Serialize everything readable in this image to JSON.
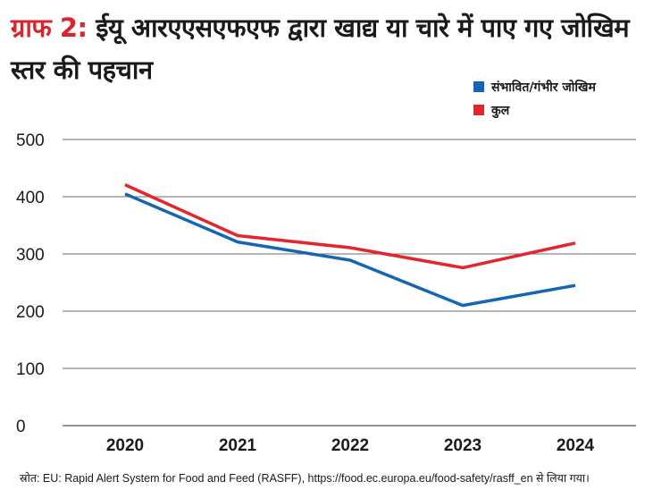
{
  "title": {
    "prefix": "ग्राफ 2:",
    "text": "ईयू आरएएसएफएफ द्वारा खाद्य या चारे में पाए गए जोखिम स्तर की पहचान"
  },
  "source": "स्रोत: EU: Rapid Alert System for Food and Feed (RASFF), https://food.ec.europa.eu/food-safety/rasff_en से लिया गया।",
  "chart_data": {
    "type": "line",
    "title": "ग्राफ 2: ईयू आरएएसएफएफ द्वारा खाद्य या चारे में पाए गए जोखिम स्तर की पहचान",
    "categories": [
      "2020",
      "2021",
      "2022",
      "2023",
      "2024"
    ],
    "series": [
      {
        "name": "संभावित/गंभीर जोखिम",
        "color": "#1565b7",
        "values": [
          405,
          321,
          289,
          210,
          245
        ]
      },
      {
        "name": "कुल",
        "color": "#e3262e",
        "values": [
          421,
          332,
          311,
          276,
          319
        ]
      }
    ],
    "ylim": [
      0,
      500
    ],
    "yticks": [
      0,
      100,
      200,
      300,
      400,
      500
    ],
    "grid": true,
    "legend": "top-right"
  }
}
